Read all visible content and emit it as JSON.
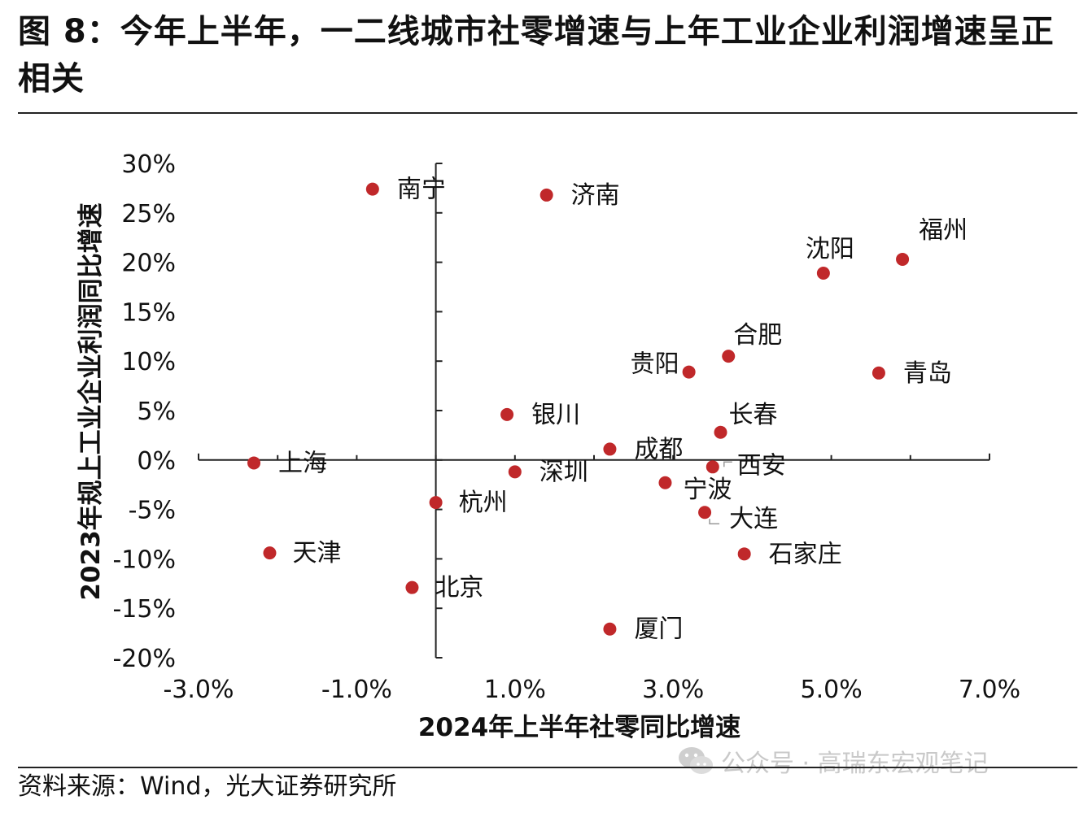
{
  "figure": {
    "title": "图 8：今年上半年，一二线城市社零增速与上年工业企业利润增速呈正相关",
    "source": "资料来源：Wind，光大证券研究所",
    "watermark": "公众号 · 高瑞东宏观笔记"
  },
  "chart_data": {
    "type": "scatter",
    "xlabel": "2024年上半年社零同比增速",
    "ylabel": "2023年规上工业企业利润同比增速",
    "xlim": [
      -3.0,
      7.0
    ],
    "ylim": [
      -20,
      30
    ],
    "xticks": [
      -3.0,
      -1.0,
      1.0,
      3.0,
      5.0,
      7.0
    ],
    "xtick_labels": [
      "-3.0%",
      "-1.0%",
      "1.0%",
      "3.0%",
      "5.0%",
      "7.0%"
    ],
    "yticks": [
      30,
      25,
      20,
      15,
      10,
      5,
      0,
      -5,
      -10,
      -15,
      -20
    ],
    "ytick_labels": [
      "30%",
      "25%",
      "20%",
      "15%",
      "10%",
      "5%",
      "0%",
      "-5%",
      "-10%",
      "-15%",
      "-20%"
    ],
    "marker_color": "#c0282a",
    "points": [
      {
        "name": "南宁",
        "x": -0.8,
        "y": 27.4
      },
      {
        "name": "济南",
        "x": 1.4,
        "y": 26.8
      },
      {
        "name": "福州",
        "x": 5.9,
        "y": 20.3
      },
      {
        "name": "沈阳",
        "x": 4.9,
        "y": 18.9
      },
      {
        "name": "合肥",
        "x": 3.7,
        "y": 10.5
      },
      {
        "name": "贵阳",
        "x": 3.2,
        "y": 8.9
      },
      {
        "name": "青岛",
        "x": 5.6,
        "y": 8.8
      },
      {
        "name": "银川",
        "x": 0.9,
        "y": 4.6
      },
      {
        "name": "长春",
        "x": 3.6,
        "y": 2.8
      },
      {
        "name": "成都",
        "x": 2.2,
        "y": 1.1
      },
      {
        "name": "上海",
        "x": -2.3,
        "y": -0.3
      },
      {
        "name": "西安",
        "x": 3.5,
        "y": -0.7
      },
      {
        "name": "深圳",
        "x": 1.0,
        "y": -1.2
      },
      {
        "name": "宁波",
        "x": 2.9,
        "y": -2.3
      },
      {
        "name": "杭州",
        "x": 0.0,
        "y": -4.3
      },
      {
        "name": "大连",
        "x": 3.4,
        "y": -5.3
      },
      {
        "name": "天津",
        "x": -2.1,
        "y": -9.4
      },
      {
        "name": "石家庄",
        "x": 3.9,
        "y": -9.5
      },
      {
        "name": "北京",
        "x": -0.3,
        "y": -12.9
      },
      {
        "name": "厦门",
        "x": 2.2,
        "y": -17.1
      }
    ]
  }
}
